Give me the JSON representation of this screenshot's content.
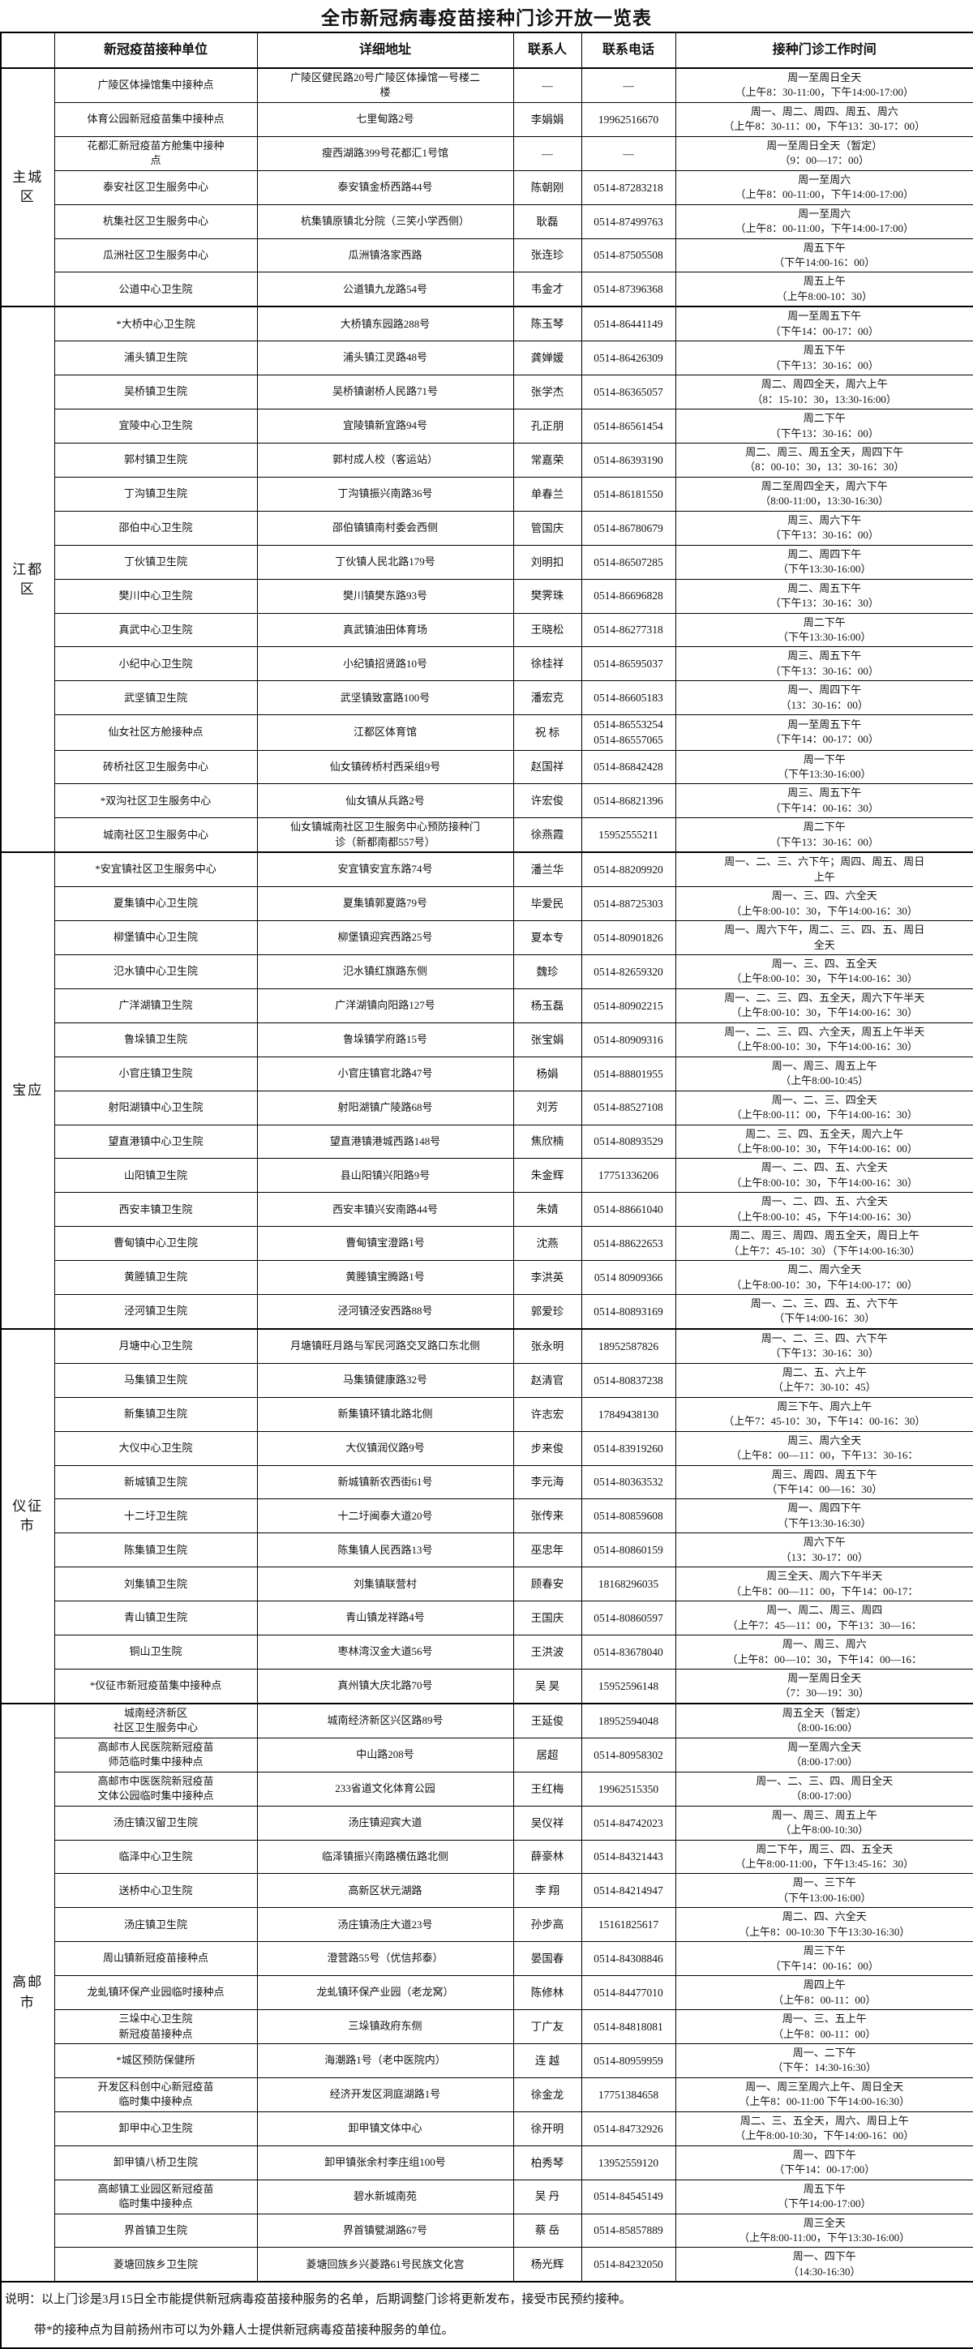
{
  "title": "全市新冠病毒疫苗接种门诊开放一览表",
  "columns": {
    "group": "",
    "unit": "新冠疫苗接种单位",
    "addr": "详细地址",
    "name": "联系人",
    "tel": "联系电话",
    "time": "接种门诊工作时间"
  },
  "groups": [
    {
      "label": "主城区",
      "rows": [
        {
          "unit": "广陵区体操馆集中接种点",
          "addr": "广陵区健民路20号广陵区体操馆一号楼二\n楼",
          "name": "—",
          "tel": "—",
          "time": "周一至周日全天\n（上午8：30-11:00，下午14:00-17:00）"
        },
        {
          "unit": "体育公园新冠疫苗集中接种点",
          "addr": "七里甸路2号",
          "name": "李娟娟",
          "tel": "19962516670",
          "time": "周一、周二、周四、周五、周六\n（上午8：30-11：00，下午13：30-17：00）"
        },
        {
          "unit": "花都汇新冠疫苗方舱集中接种\n点",
          "addr": "瘦西湖路399号花都汇1号馆",
          "name": "—",
          "tel": "—",
          "time": "周一至周日全天（暂定）\n（9：00—17：00）"
        },
        {
          "unit": "泰安社区卫生服务中心",
          "addr": "泰安镇金桥西路44号",
          "name": "陈朝刚",
          "tel": "0514-87283218",
          "time": "周一至周六\n（上午8：00-11:00，下午14:00-17:00）"
        },
        {
          "unit": "杭集社区卫生服务中心",
          "addr": "杭集镇原镇北分院（三笑小学西侧）",
          "name": "耿磊",
          "tel": "0514-87499763",
          "time": "周一至周六\n（上午8：00-11:00，下午14:00-17:00）"
        },
        {
          "unit": "瓜洲社区卫生服务中心",
          "addr": "瓜洲镇洛家西路",
          "name": "张连珍",
          "tel": "0514-87505508",
          "time": "周五下午\n（下午14:00-16：00）"
        },
        {
          "unit": "公道中心卫生院",
          "addr": "公道镇九龙路54号",
          "name": "韦金才",
          "tel": "0514-87396368",
          "time": "周五上午\n（上午8:00-10：30）"
        }
      ]
    },
    {
      "label": "江都区",
      "rows": [
        {
          "unit": "*大桥中心卫生院",
          "addr": "大桥镇东园路288号",
          "name": "陈玉琴",
          "tel": "0514-86441149",
          "time": "周一至周五下午\n（下午14：00-17：00）"
        },
        {
          "unit": "浦头镇卫生院",
          "addr": "浦头镇江灵路48号",
          "name": "龚婵媛",
          "tel": "0514-86426309",
          "time": "周五下午\n（下午13：30-16：00）"
        },
        {
          "unit": "吴桥镇卫生院",
          "addr": "吴桥镇谢桥人民路71号",
          "name": "张学杰",
          "tel": "0514-86365057",
          "time": "周二、周四全天，周六上午\n（8：15-10：30，13:30-16:00）"
        },
        {
          "unit": "宜陵中心卫生院",
          "addr": "宜陵镇新宜路94号",
          "name": "孔正朋",
          "tel": "0514-86561454",
          "time": "周二下午\n（下午13：30-16：00）"
        },
        {
          "unit": "郭村镇卫生院",
          "addr": "郭村成人校（客运站）",
          "name": "常嘉荣",
          "tel": "0514-86393190",
          "time": "周二、周三、周五全天，周四下午\n（8：00-10：30，13：30-16：30）"
        },
        {
          "unit": "丁沟镇卫生院",
          "addr": "丁沟镇振兴南路36号",
          "name": "单春兰",
          "tel": "0514-86181550",
          "time": "周二至周四全天，周六下午\n（8:00-11:00，13:30-16:30）"
        },
        {
          "unit": "邵伯中心卫生院",
          "addr": "邵伯镇镇南村委会西侧",
          "name": "管国庆",
          "tel": "0514-86780679",
          "time": "周三、周六下午\n（下午13：30-16：00）"
        },
        {
          "unit": "丁伙镇卫生院",
          "addr": "丁伙镇人民北路179号",
          "name": "刘明扣",
          "tel": "0514-86507285",
          "time": "周二、周四下午\n（下午13:30-16:00）"
        },
        {
          "unit": "樊川中心卫生院",
          "addr": "樊川镇樊东路93号",
          "name": "樊霁珠",
          "tel": "0514-86696828",
          "time": "周二、周五下午\n（下午13：30-16：30）"
        },
        {
          "unit": "真武中心卫生院",
          "addr": "真武镇油田体育场",
          "name": "王晓松",
          "tel": "0514-86277318",
          "time": "周二下午\n（下午13:30-16:00）"
        },
        {
          "unit": "小纪中心卫生院",
          "addr": "小纪镇招贤路10号",
          "name": "徐桂祥",
          "tel": "0514-86595037",
          "time": "周三、周五下午\n（下午13：30-16：00）"
        },
        {
          "unit": "武坚镇卫生院",
          "addr": "武坚镇致富路100号",
          "name": "潘宏克",
          "tel": "0514-86605183",
          "time": "周一、周四下午\n（13：30-16：00）"
        },
        {
          "unit": "仙女社区方舱接种点",
          "addr": "江都区体育馆",
          "name": "祝  标",
          "tel": "0514-86553254\n0514-86557065",
          "time": "周一至周五下午\n（下午14：00-17：00）"
        },
        {
          "unit": "砖桥社区卫生服务中心",
          "addr": "仙女镇砖桥村西采组9号",
          "name": "赵国祥",
          "tel": "0514-86842428",
          "time": "周一下午\n（下午13:30-16:00）"
        },
        {
          "unit": "*双沟社区卫生服务中心",
          "addr": "仙女镇从兵路2号",
          "name": "许宏俊",
          "tel": "0514-86821396",
          "time": "周三、周五下午\n（下午14：00-16：30）"
        },
        {
          "unit": "城南社区卫生服务中心",
          "addr": "仙女镇城南社区卫生服务中心预防接种门\n诊（新都南都557号）",
          "name": "徐燕霞",
          "tel": "15952555211",
          "time": "周二下午\n（下午13：30-16：00）"
        }
      ]
    },
    {
      "label": "宝应",
      "rows": [
        {
          "unit": "*安宜镇社区卫生服务中心",
          "addr": "安宜镇安宜东路74号",
          "name": "潘兰华",
          "tel": "0514-88209920",
          "time": "周一、二、三、六下午；周四、周五、周日\n上午"
        },
        {
          "unit": "夏集镇中心卫生院",
          "addr": "夏集镇郭夏路79号",
          "name": "毕爱民",
          "tel": "0514-88725303",
          "time": "周一、三、四、六全天\n（上午8:00-10：30，下午14:00-16：30）"
        },
        {
          "unit": "柳堡镇中心卫生院",
          "addr": "柳堡镇迎宾西路25号",
          "name": "夏本专",
          "tel": "0514-80901826",
          "time": "周一、周六下午，周二、三、四、五、周日\n全天"
        },
        {
          "unit": "氾水镇中心卫生院",
          "addr": "氾水镇红旗路东侧",
          "name": "魏珍",
          "tel": "0514-82659320",
          "time": "周一、三、四、五全天\n（上午8:00-10：30，下午14:00-16：30）"
        },
        {
          "unit": "广洋湖镇卫生院",
          "addr": "广洋湖镇向阳路127号",
          "name": "杨玉磊",
          "tel": "0514-80902215",
          "time": "周一、二、三、四、五全天，周六下午半天\n（上午8:00-10：30，下午14:00-16：30）"
        },
        {
          "unit": "鲁垛镇卫生院",
          "addr": "鲁垛镇学府路15号",
          "name": "张宝娟",
          "tel": "0514-80909316",
          "time": "周一、二、三、四、六全天，周五上午半天\n（上午8:00-10：30，下午14:00-16：30）"
        },
        {
          "unit": "小官庄镇卫生院",
          "addr": "小官庄镇官北路47号",
          "name": "杨娟",
          "tel": "0514-88801955",
          "time": "周一、周三、周五上午\n（上午8:00-10:45）"
        },
        {
          "unit": "射阳湖镇中心卫生院",
          "addr": "射阳湖镇广陵路68号",
          "name": "刘芳",
          "tel": "0514-88527108",
          "time": "周一、二、三、四全天\n（上午8:00-11：00，下午14:00-16：30）"
        },
        {
          "unit": "望直港镇中心卫生院",
          "addr": "望直港镇港城西路148号",
          "name": "焦欣楠",
          "tel": "0514-80893529",
          "time": "周二、三、四、五全天，周六上午\n（上午8:00-10：30，下午14:00-16：00）"
        },
        {
          "unit": "山阳镇卫生院",
          "addr": "县山阳镇兴阳路9号",
          "name": "朱金辉",
          "tel": "17751336206",
          "time": "周一、二、四、五、六全天\n（上午8:00-10：30，下午14:00-16：30）"
        },
        {
          "unit": "西安丰镇卫生院",
          "addr": "西安丰镇兴安南路44号",
          "name": "朱婧",
          "tel": "0514-88661040",
          "time": "周一、二、四、五、六全天\n（上午8:00-10：45，下午14:00-16：30）"
        },
        {
          "unit": "曹甸镇中心卫生院",
          "addr": "曹甸镇宝澄路1号",
          "name": "沈燕",
          "tel": "0514-88622653",
          "time": "周二、周三、周四、周五全天，周日上午\n（上午7：45-10：30）（下午14:00-16:30）"
        },
        {
          "unit": "黄塍镇卫生院",
          "addr": "黄塍镇宝腾路1号",
          "name": "李洪英",
          "tel": "0514 80909366",
          "time": "周二、周六全天\n（上午8:00-10：30，下午14:00-17：00）"
        },
        {
          "unit": "泾河镇卫生院",
          "addr": "泾河镇泾安西路88号",
          "name": "郭爱珍",
          "tel": "0514-80893169",
          "time": "周一、二、三、四、五、六下午\n（下午14:00-16：30）"
        }
      ]
    },
    {
      "label": "仪征市",
      "rows": [
        {
          "unit": "月塘中心卫生院",
          "addr": "月塘镇旺月路与军民河路交叉路口东北侧",
          "name": "张永明",
          "tel": "18952587826",
          "time": "周一、二、三、四、六下午\n（下午13：30-16：30）"
        },
        {
          "unit": "马集镇卫生院",
          "addr": "马集镇健康路32号",
          "name": "赵清官",
          "tel": "0514-80837238",
          "time": "周二、五、六上午\n（上午7：30-10：45）"
        },
        {
          "unit": "新集镇卫生院",
          "addr": "新集镇环镇北路北侧",
          "name": "许志宏",
          "tel": "17849438130",
          "time": "周三下午、周六上午\n（上午7：45-10：30，下午14：00-16：30）"
        },
        {
          "unit": "大仪中心卫生院",
          "addr": "大仪镇润仪路9号",
          "name": "步来俊",
          "tel": "0514-83919260",
          "time": "周三、周六全天\n（上午8：00—11：00，下午13：30-16："
        },
        {
          "unit": "新城镇卫生院",
          "addr": "新城镇新农西街61号",
          "name": "李元海",
          "tel": "0514-80363532",
          "time": "周三、周四、周五下午\n（下午14：00—16：30）"
        },
        {
          "unit": "十二圩卫生院",
          "addr": "十二圩闽泰大道20号",
          "name": "张传来",
          "tel": "0514-80859608",
          "time": "周一、周四下午\n（下午13:30-16:30）"
        },
        {
          "unit": "陈集镇卫生院",
          "addr": "陈集镇人民西路13号",
          "name": "巫忠年",
          "tel": "0514-80860159",
          "time": "周六下午\n（13：30-17：00）"
        },
        {
          "unit": "刘集镇卫生院",
          "addr": "刘集镇联营村",
          "name": "顾春安",
          "tel": "18168296035",
          "time": "周三全天、周六下午半天\n（上午8：00—11：00，下午14：00-17："
        },
        {
          "unit": "青山镇卫生院",
          "addr": "青山镇龙祥路4号",
          "name": "王国庆",
          "tel": "0514-80860597",
          "time": "周一、周二、周三、周四\n（上午7：45—11：00，下午13：30—16："
        },
        {
          "unit": "铜山卫生院",
          "addr": "枣林湾汉金大道56号",
          "name": "王洪波",
          "tel": "0514-83678040",
          "time": "周一、周三、周六\n（上午8：00—10：30，下午14：00—16："
        },
        {
          "unit": "*仪征市新冠疫苗集中接种点",
          "addr": "真州镇大庆北路70号",
          "name": "吴  昊",
          "tel": "15952596148",
          "time": "周一至周日全天\n（7：30—19：30）"
        }
      ]
    },
    {
      "label": "高邮市",
      "rows": [
        {
          "unit": "城南经济新区\n社区卫生服务中心",
          "addr": "城南经济新区兴区路89号",
          "name": "王延俊",
          "tel": "18952594048",
          "time": "周五全天（暂定）\n（8:00-16:00）"
        },
        {
          "unit": "高邮市人民医院新冠疫苗\n师范临时集中接种点",
          "addr": "中山路208号",
          "name": "居超",
          "tel": "0514-80958302",
          "time": "周一至周六全天\n（8:00-17:00）"
        },
        {
          "unit": "高邮市中医医院新冠疫苗\n文体公园临时集中接种点",
          "addr": "233省道文化体育公园",
          "name": "王红梅",
          "tel": "19962515350",
          "time": "周一、二、三、四、周日全天\n（8:00-17:00）"
        },
        {
          "unit": "汤庄镇汉留卫生院",
          "addr": "汤庄镇迎宾大道",
          "name": "吴仪祥",
          "tel": "0514-84742023",
          "time": "周一、周三、周五上午\n（上午8:00-10:30）"
        },
        {
          "unit": "临泽中心卫生院",
          "addr": "临泽镇振兴南路横伍路北侧",
          "name": "薛豪林",
          "tel": "0514-84321443",
          "time": "周二下午，周三、四、五全天\n（上午8:00-11:00，下午13:45-16：30）"
        },
        {
          "unit": "送桥中心卫生院",
          "addr": "高新区状元湖路",
          "name": "李  翔",
          "tel": "0514-84214947",
          "time": "周一、三下午\n（下午13:00-16:00）"
        },
        {
          "unit": "汤庄镇卫生院",
          "addr": "汤庄镇汤庄大道23号",
          "name": "孙步高",
          "tel": "15161825617",
          "time": "周二、四、六全天\n（上午8：00-10:30 下午13:30-16:30）"
        },
        {
          "unit": "周山镇新冠疫苗接种点",
          "addr": "澄营路55号（优信邦泰）",
          "name": "晏国春",
          "tel": "0514-84308846",
          "time": "周三下午\n（下午14：00-16：00）"
        },
        {
          "unit": "龙虬镇环保产业园临时接种点",
          "addr": "龙虬镇环保产业园（老龙窝）",
          "name": "陈修林",
          "tel": "0514-84477010",
          "time": "周四上午\n（上午8：00-11：00）"
        },
        {
          "unit": "三垛中心卫生院\n新冠疫苗接种点",
          "addr": "三垛镇政府东侧",
          "name": "丁广友",
          "tel": "0514-84818081",
          "time": "周一、三、五上午\n（上午8：00-11：00）"
        },
        {
          "unit": "*城区预防保健所",
          "addr": "海潮路1号（老中医院内）",
          "name": "连  越",
          "tel": "0514-80959959",
          "time": "周一、二下午\n（下午：14:30-16:30）"
        },
        {
          "unit": "开发区科创中心新冠疫苗\n临时集中接种点",
          "addr": "经济开发区洞庭湖路1号",
          "name": "徐金龙",
          "tel": "17751384658",
          "time": "周一、周三至周六上午、周日全天\n（上午8：00-11:00 下午14:00-16:30）"
        },
        {
          "unit": "卸甲中心卫生院",
          "addr": "卸甲镇文体中心",
          "name": "徐开明",
          "tel": "0514-84732926",
          "time": "周二、三、五全天，周六、周日上午\n（上午8:00-10:30，下午14:00-16：00）"
        },
        {
          "unit": "卸甲镇八桥卫生院",
          "addr": "卸甲镇张余村李庄组100号",
          "name": "柏秀琴",
          "tel": "13952559120",
          "time": "周一、四下午\n（下午14：00-17:00）"
        },
        {
          "unit": "高邮镇工业园区新冠疫苗\n临时集中接种点",
          "addr": "碧水新城南苑",
          "name": "吴  丹",
          "tel": "0514-84545149",
          "time": "周五下午\n（下午14:00-17:00）"
        },
        {
          "unit": "界首镇卫生院",
          "addr": "界首镇甓湖路67号",
          "name": "蔡  岳",
          "tel": "0514-85857889",
          "time": "周三全天\n（上午8:00-11:00，下午13:30-16:00）"
        },
        {
          "unit": "菱塘回族乡卫生院",
          "addr": "菱塘回族乡兴菱路61号民族文化宫",
          "name": "杨光辉",
          "tel": "0514-84232050",
          "time": "周一、四下午\n（14:30-16:30）"
        }
      ]
    }
  ],
  "notes": {
    "line1": "说明：以上门诊是3月15日全市能提供新冠病毒疫苗接种服务的名单，后期调整门诊将更新发布，接受市民预约接种。",
    "line2": "带*的接种点为目前扬州市可以为外籍人士提供新冠病毒疫苗接种服务的单位。"
  }
}
